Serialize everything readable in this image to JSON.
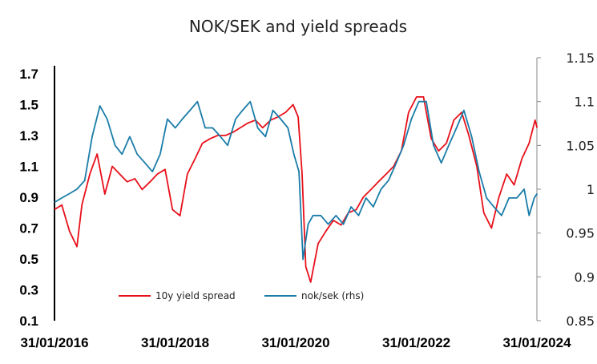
{
  "chart_data": {
    "type": "line",
    "title": "NOK/SEK and yield spreads",
    "xlabel": "",
    "ylabel": "",
    "y_left": {
      "lim": [
        0.1,
        1.7
      ],
      "ticks": [
        "0.1",
        "0.3",
        "0.5",
        "0.7",
        "0.9",
        "1.1",
        "1.3",
        "1.5",
        "1.7"
      ]
    },
    "y_right": {
      "lim": [
        0.85,
        1.15
      ],
      "ticks": [
        "0.85",
        "0.9",
        "0.95",
        "1",
        "1.05",
        "1.1",
        "1.15"
      ]
    },
    "x_ticks": [
      "31/01/2016",
      "31/01/2018",
      "31/01/2020",
      "31/01/2022",
      "31/01/2024"
    ],
    "grid": false,
    "legend_position": "bottom-center",
    "series": [
      {
        "name": "10y yield spread",
        "axis": "left",
        "color": "#e8101a",
        "x": [
          "2016-01-31",
          "2016-03-15",
          "2016-05-01",
          "2016-06-15",
          "2016-07-15",
          "2016-09-01",
          "2016-10-15",
          "2016-12-01",
          "2017-01-15",
          "2017-03-01",
          "2017-04-15",
          "2017-06-01",
          "2017-07-15",
          "2017-09-01",
          "2017-10-15",
          "2017-12-01",
          "2018-01-15",
          "2018-03-01",
          "2018-04-15",
          "2018-06-01",
          "2018-07-15",
          "2018-09-01",
          "2018-10-15",
          "2018-12-01",
          "2019-01-15",
          "2019-03-01",
          "2019-04-15",
          "2019-06-01",
          "2019-07-15",
          "2019-09-01",
          "2019-10-15",
          "2019-12-01",
          "2020-01-15",
          "2020-02-15",
          "2020-03-10",
          "2020-04-01",
          "2020-05-01",
          "2020-06-15",
          "2020-08-01",
          "2020-09-15",
          "2020-11-01",
          "2020-12-15",
          "2021-02-01",
          "2021-03-15",
          "2021-05-01",
          "2021-06-15",
          "2021-08-01",
          "2021-09-15",
          "2021-11-01",
          "2021-12-15",
          "2022-02-01",
          "2022-03-15",
          "2022-05-01",
          "2022-06-15",
          "2022-08-01",
          "2022-09-15",
          "2022-11-01",
          "2022-12-15",
          "2023-02-01",
          "2023-03-15",
          "2023-05-01",
          "2023-06-15",
          "2023-08-01",
          "2023-09-15",
          "2023-11-01",
          "2023-12-15",
          "2024-01-20",
          "2024-02-01"
        ],
        "values": [
          0.82,
          0.85,
          0.68,
          0.58,
          0.85,
          1.05,
          1.18,
          0.92,
          1.1,
          1.05,
          1.0,
          1.02,
          0.95,
          1.0,
          1.05,
          1.08,
          0.82,
          0.78,
          1.05,
          1.15,
          1.25,
          1.28,
          1.3,
          1.3,
          1.32,
          1.35,
          1.38,
          1.4,
          1.35,
          1.4,
          1.42,
          1.45,
          1.5,
          1.42,
          1.05,
          0.45,
          0.35,
          0.6,
          0.68,
          0.75,
          0.72,
          0.8,
          0.82,
          0.9,
          0.95,
          1.0,
          1.05,
          1.1,
          1.2,
          1.45,
          1.55,
          1.55,
          1.28,
          1.2,
          1.25,
          1.4,
          1.45,
          1.3,
          1.1,
          0.8,
          0.7,
          0.9,
          1.05,
          0.98,
          1.15,
          1.25,
          1.4,
          1.35
        ]
      },
      {
        "name": "nok/sek (rhs)",
        "axis": "right",
        "color": "#1a7ca8",
        "x": [
          "2016-01-31",
          "2016-03-15",
          "2016-05-01",
          "2016-06-15",
          "2016-08-01",
          "2016-09-15",
          "2016-11-01",
          "2016-12-15",
          "2017-02-01",
          "2017-03-15",
          "2017-05-01",
          "2017-06-15",
          "2017-08-01",
          "2017-09-15",
          "2017-11-01",
          "2017-12-15",
          "2018-02-01",
          "2018-03-15",
          "2018-05-01",
          "2018-06-15",
          "2018-08-01",
          "2018-09-15",
          "2018-11-01",
          "2018-12-15",
          "2019-02-01",
          "2019-03-15",
          "2019-05-01",
          "2019-06-15",
          "2019-08-01",
          "2019-09-15",
          "2019-11-01",
          "2019-12-15",
          "2020-01-20",
          "2020-02-20",
          "2020-03-15",
          "2020-04-15",
          "2020-05-15",
          "2020-07-01",
          "2020-08-15",
          "2020-10-01",
          "2020-11-15",
          "2021-01-01",
          "2021-02-15",
          "2021-04-01",
          "2021-05-15",
          "2021-07-01",
          "2021-08-15",
          "2021-10-01",
          "2021-11-15",
          "2022-01-01",
          "2022-02-15",
          "2022-04-01",
          "2022-05-15",
          "2022-07-01",
          "2022-08-15",
          "2022-10-01",
          "2022-11-15",
          "2023-01-01",
          "2023-02-15",
          "2023-04-01",
          "2023-05-15",
          "2023-07-01",
          "2023-08-15",
          "2023-10-01",
          "2023-11-15",
          "2023-12-15",
          "2024-01-15",
          "2024-02-01"
        ],
        "values": [
          0.985,
          0.99,
          0.995,
          1.0,
          1.01,
          1.06,
          1.095,
          1.08,
          1.05,
          1.04,
          1.06,
          1.04,
          1.03,
          1.02,
          1.04,
          1.08,
          1.07,
          1.08,
          1.09,
          1.1,
          1.07,
          1.07,
          1.06,
          1.05,
          1.08,
          1.09,
          1.1,
          1.07,
          1.06,
          1.09,
          1.08,
          1.07,
          1.04,
          1.02,
          0.92,
          0.96,
          0.97,
          0.97,
          0.96,
          0.97,
          0.96,
          0.98,
          0.97,
          0.99,
          0.98,
          1.0,
          1.01,
          1.03,
          1.05,
          1.08,
          1.1,
          1.1,
          1.05,
          1.03,
          1.05,
          1.07,
          1.09,
          1.06,
          1.02,
          0.99,
          0.98,
          0.97,
          0.99,
          0.99,
          1.0,
          0.97,
          0.99,
          0.995
        ]
      }
    ]
  }
}
